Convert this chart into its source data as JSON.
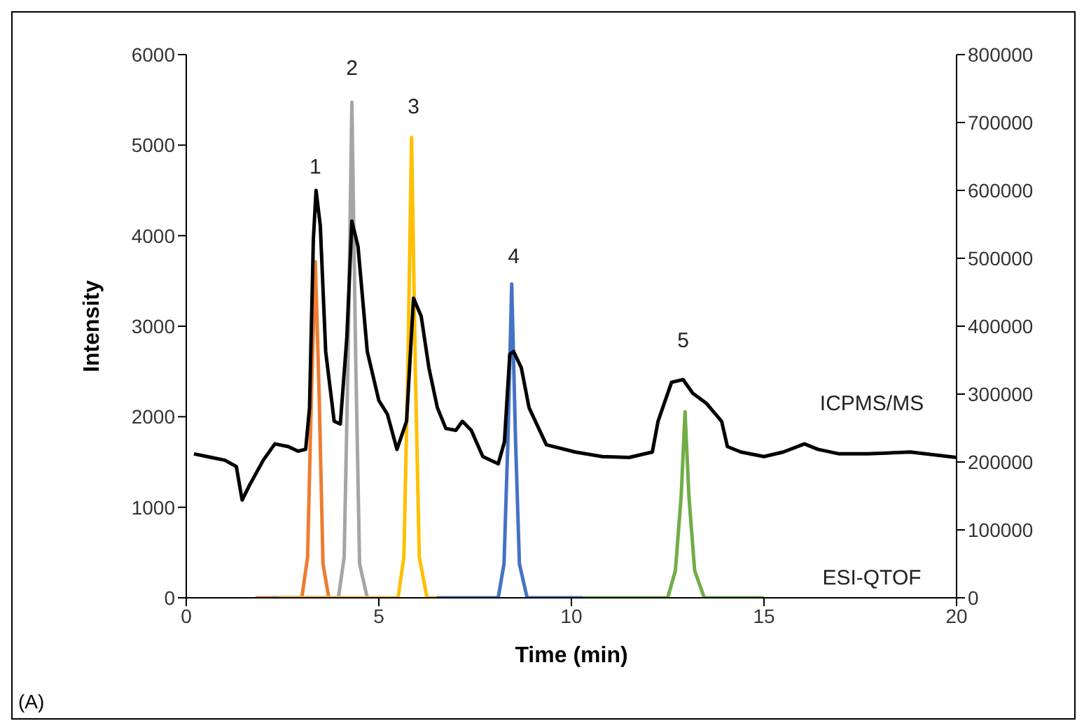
{
  "chart_data": {
    "type": "line",
    "xlabel": "Time (min)",
    "ylabel": "Intensity",
    "xlim": [
      0,
      20
    ],
    "xticks": [
      0,
      5,
      10,
      15,
      20
    ],
    "ylim": [
      0,
      6000
    ],
    "yticks": [
      0,
      1000,
      2000,
      3000,
      4000,
      5000,
      6000
    ],
    "y2lim": [
      0,
      800000
    ],
    "y2ticks": [
      0,
      100000,
      200000,
      300000,
      400000,
      500000,
      600000,
      700000,
      800000
    ],
    "grid": false,
    "legend": false,
    "marker": "none",
    "line_style": "solid",
    "series": [
      {
        "color": "#ed7d31",
        "axis": "y2",
        "x": [
          1.8,
          3.0,
          3.15,
          3.25,
          3.35,
          3.45,
          3.55,
          3.7
        ],
        "values": [
          0,
          0,
          60000,
          300000,
          495000,
          300000,
          50000,
          0
        ]
      },
      {
        "color": "#a5a5a5",
        "axis": "y2",
        "x": [
          2.2,
          3.95,
          4.1,
          4.2,
          4.3,
          4.4,
          4.5,
          4.7
        ],
        "values": [
          0,
          0,
          60000,
          350000,
          730000,
          350000,
          50000,
          0
        ]
      },
      {
        "color": "#ffc000",
        "axis": "y2",
        "x": [
          2.4,
          5.5,
          5.65,
          5.75,
          5.85,
          5.95,
          6.05,
          6.25,
          6.5
        ],
        "values": [
          0,
          0,
          60000,
          330000,
          678000,
          330000,
          60000,
          0,
          0
        ]
      },
      {
        "color": "#4472c4",
        "axis": "y2",
        "x": [
          6.5,
          8.1,
          8.25,
          8.35,
          8.45,
          8.55,
          8.65,
          8.85,
          10.3
        ],
        "values": [
          0,
          0,
          50000,
          230000,
          462000,
          230000,
          50000,
          0,
          0
        ]
      },
      {
        "color": "#70ad47",
        "axis": "y2",
        "x": [
          10.3,
          12.5,
          12.7,
          12.85,
          12.95,
          13.05,
          13.2,
          13.45,
          15.0
        ],
        "values": [
          0,
          0,
          40000,
          150000,
          274000,
          150000,
          40000,
          0,
          0
        ]
      },
      {
        "color": "#000000",
        "axis": "y",
        "x": [
          0.2,
          0.65,
          1.0,
          1.3,
          1.45,
          1.65,
          2.0,
          2.3,
          2.65,
          2.9,
          3.1,
          3.2,
          3.3,
          3.37,
          3.48,
          3.62,
          3.84,
          4.0,
          4.17,
          4.3,
          4.46,
          4.7,
          5.0,
          5.22,
          5.47,
          5.72,
          5.9,
          6.1,
          6.3,
          6.52,
          6.74,
          7.0,
          7.17,
          7.4,
          7.7,
          8.1,
          8.26,
          8.4,
          8.5,
          8.7,
          8.9,
          9.35,
          10.1,
          10.8,
          11.5,
          12.1,
          12.25,
          12.6,
          12.9,
          13.15,
          13.5,
          13.9,
          14.05,
          14.4,
          15.0,
          15.5,
          16.05,
          16.4,
          16.95,
          17.7,
          18.8,
          20.0
        ],
        "values": [
          1590,
          1550,
          1520,
          1450,
          1080,
          1250,
          1520,
          1700,
          1670,
          1620,
          1640,
          2100,
          3960,
          4500,
          4110,
          2720,
          1950,
          1920,
          2880,
          4160,
          3880,
          2720,
          2180,
          2030,
          1640,
          1950,
          3310,
          3110,
          2540,
          2100,
          1870,
          1850,
          1950,
          1850,
          1560,
          1480,
          1720,
          2690,
          2720,
          2540,
          2100,
          1690,
          1610,
          1560,
          1550,
          1610,
          1950,
          2380,
          2410,
          2260,
          2150,
          1950,
          1670,
          1610,
          1560,
          1610,
          1700,
          1640,
          1590,
          1590,
          1610,
          1550
        ]
      }
    ],
    "annotations": [
      "1",
      "2",
      "3",
      "4",
      "5",
      "ICPMS/MS",
      "ESI-QTOF",
      "(A)"
    ]
  }
}
